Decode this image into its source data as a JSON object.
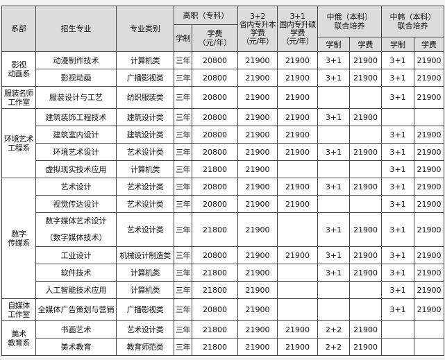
{
  "header": {
    "dept": "系部",
    "major": "招生专业",
    "category": "专业类别",
    "gaozhi": "高职（专科）",
    "gaozhi_years": "学制",
    "gaozhi_fee": "学费\n（元/年）",
    "p32": "3+2\n省内专升本\n学费\n（元/年）",
    "p31": "3+1\n国内专升硕\n学费\n（元/年）",
    "russia": "中俄（本科）\n联合培养",
    "korea": "中韩（本科）\n联合培养",
    "years": "学制",
    "fee": "学费"
  },
  "departments": [
    {
      "name": "影视\n动画系",
      "rows": [
        {
          "major": "动漫制作技术",
          "category": "计算机类",
          "years": "三年",
          "fee": "20800",
          "p32": "21900",
          "p31": "21900",
          "ru_years": "3+1",
          "ru_fee": "21900",
          "kr_years": "3+1",
          "kr_fee": "21900"
        },
        {
          "major": "影视动画",
          "category": "广播影视类",
          "years": "三年",
          "fee": "20800",
          "p32": "21900",
          "p31": "21900",
          "ru_years": "3+1",
          "ru_fee": "21900",
          "kr_years": "3+1",
          "kr_fee": "21900"
        }
      ]
    },
    {
      "name": "服装名师\n工作室",
      "tall": true,
      "rows": [
        {
          "major": "服装设计与工艺",
          "category": "纺织服装类",
          "years": "三年",
          "fee": "20800",
          "p32": "21900",
          "p31": "21900",
          "ru_years": "",
          "ru_fee": "",
          "kr_years": "3+1",
          "kr_fee": "21900"
        }
      ]
    },
    {
      "name": "环境艺术\n工程系",
      "rows": [
        {
          "major": "建筑装饰工程技术",
          "category": "建筑设计类",
          "years": "三年",
          "fee": "20800",
          "p32": "21900",
          "p31": "21900",
          "ru_years": "3+1",
          "ru_fee": "21900",
          "kr_years": "",
          "kr_fee": ""
        },
        {
          "major": "建筑室内设计",
          "category": "建筑设计类",
          "years": "三年",
          "fee": "20800",
          "p32": "21900",
          "p31": "21900",
          "ru_years": "",
          "ru_fee": "",
          "kr_years": "3+1",
          "kr_fee": "21900"
        },
        {
          "major": "环境艺术设计",
          "category": "艺术设计类",
          "years": "三年",
          "fee": "20800",
          "p32": "21900",
          "p31": "21900",
          "ru_years": "3+1",
          "ru_fee": "21900",
          "kr_years": "3+1",
          "kr_fee": "21900"
        },
        {
          "major": "虚拟现实技术应用",
          "category": "计算机类",
          "years": "三年",
          "fee": "21800",
          "p32": "21900",
          "p31": "",
          "ru_years": "",
          "ru_fee": "",
          "kr_years": "3+1",
          "kr_fee": "21900"
        }
      ]
    },
    {
      "name": "数字\n传媒系",
      "rows": [
        {
          "major": "艺术设计",
          "category": "艺术设计类",
          "years": "三年",
          "fee": "20800",
          "p32": "21900",
          "p31": "21900",
          "ru_years": "3+1",
          "ru_fee": "21900",
          "kr_years": "3+1",
          "kr_fee": "21900"
        },
        {
          "major": "视觉传达设计",
          "category": "艺术设计类",
          "years": "三年",
          "fee": "20800",
          "p32": "21900",
          "p31": "21900",
          "ru_years": "",
          "ru_fee": "",
          "kr_years": "3+1",
          "kr_fee": "21900"
        },
        {
          "major": "数字媒体艺术设计\n（数字媒体技术）",
          "double": true,
          "category": "艺术设计类",
          "years": "三年",
          "fee": "21800",
          "p32": "21900",
          "p31": "",
          "ru_years": "3+1",
          "ru_fee": "21900",
          "kr_years": "3+1",
          "kr_fee": "21900"
        },
        {
          "major": "工业设计",
          "category": "机械设计制造类",
          "years": "三年",
          "fee": "20800",
          "p32": "21900",
          "p31": "21900",
          "ru_years": "3+1",
          "ru_fee": "21900",
          "kr_years": "3+1",
          "kr_fee": "21900"
        },
        {
          "major": "软件技术",
          "category": "计算机类",
          "years": "三年",
          "fee": "21800",
          "p32": "21900",
          "p31": "",
          "ru_years": "3+1",
          "ru_fee": "21900",
          "kr_years": "3+1",
          "kr_fee": "21900"
        },
        {
          "major": "人工智能技术应用",
          "category": "计算机类",
          "years": "三年",
          "fee": "21800",
          "p32": "21900",
          "p31": "",
          "ru_years": "",
          "ru_fee": "",
          "kr_years": "3+1",
          "kr_fee": "21900"
        }
      ]
    },
    {
      "name": "自媒体\n工作室",
      "tall": true,
      "rows": [
        {
          "major": "全媒体广告策划与营销",
          "category": "广播影视类",
          "years": "三年",
          "fee": "20800",
          "p32": "21900",
          "p31": "",
          "ru_years": "",
          "ru_fee": "",
          "kr_years": "3+1",
          "kr_fee": "21900"
        }
      ]
    },
    {
      "name": "美术\n教育系",
      "rows": [
        {
          "major": "书画艺术",
          "category": "艺术设计类",
          "years": "三年",
          "fee": "21800",
          "p32": "21900",
          "p31": "21900",
          "ru_years": "2+2",
          "ru_fee": "21900",
          "kr_years": "",
          "kr_fee": ""
        },
        {
          "major": "美术教育",
          "category": "教育师范类",
          "years": "三年",
          "fee": "21800",
          "p32": "21900",
          "p31": "21900",
          "ru_years": "2+2",
          "ru_fee": "21900",
          "kr_years": "",
          "kr_fee": ""
        }
      ]
    }
  ]
}
